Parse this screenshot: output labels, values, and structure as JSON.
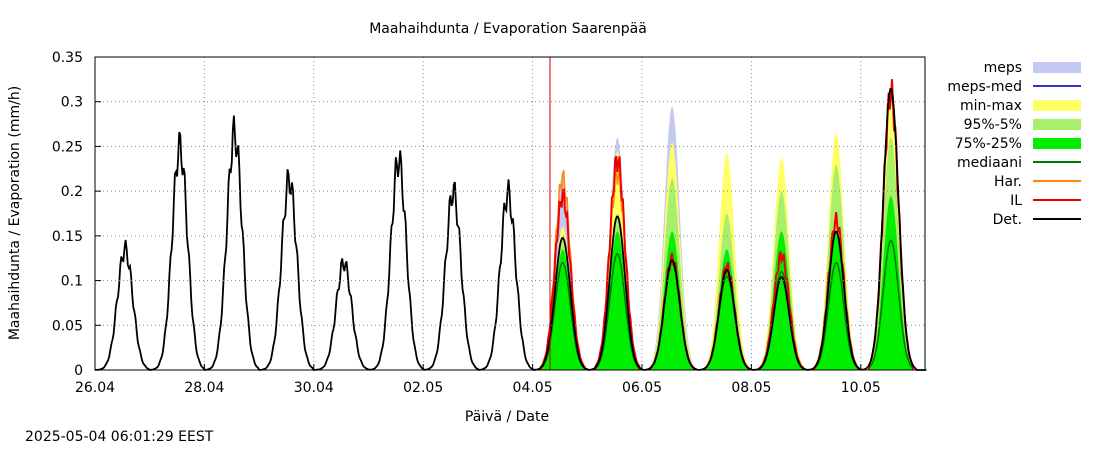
{
  "chart_data": {
    "type": "area",
    "title": "Maahaihdunta / Evaporation  Saarenpää",
    "xlabel": "Päivä / Date",
    "ylabel": "Maahaihdunta / Evaporation (mm/h)",
    "x_range_days": [
      "26.04",
      "11.05"
    ],
    "ylim": [
      0,
      0.35
    ],
    "x_ticks": [
      "26.04",
      "28.04",
      "30.04",
      "02.05",
      "04.05",
      "06.05",
      "08.05",
      "10.05"
    ],
    "y_ticks": [
      "0",
      "0.05",
      "0.1",
      "0.15",
      "0.2",
      "0.25",
      "0.3",
      "0.35"
    ],
    "grid": true,
    "legend_position": "right",
    "forecast_start": "04.05 06:00",
    "colors": {
      "meps": "#c4c8f4",
      "meps-med": "#3333cc",
      "min-max": "#ffff66",
      "95%-5%": "#a8ef6c",
      "75%-25%": "#00ee00",
      "mediaani": "#007700",
      "Har.": "#ff8800",
      "IL": "#ee0000",
      "Det.": "#000000",
      "forecast_line": "#cc0000"
    },
    "legend": [
      "meps",
      "meps-med",
      "min-max",
      "95%-5%",
      "75%-25%",
      "mediaani",
      "Har.",
      "IL",
      "Det."
    ],
    "series": [
      {
        "name": "Det.",
        "kind": "line",
        "daily_peaks": [
          {
            "date": "26.04",
            "peak": 0.135
          },
          {
            "date": "27.04",
            "peak": 0.25
          },
          {
            "date": "28.04",
            "peak": 0.265
          },
          {
            "date": "29.04",
            "peak": 0.213
          },
          {
            "date": "30.04",
            "peak": 0.12
          },
          {
            "date": "01.05",
            "peak": 0.235
          },
          {
            "date": "02.05",
            "peak": 0.2
          },
          {
            "date": "03.05",
            "peak": 0.198
          },
          {
            "date": "04.05",
            "peak": 0.148
          },
          {
            "date": "05.05",
            "peak": 0.172
          },
          {
            "date": "06.05",
            "peak": 0.123
          },
          {
            "date": "07.05",
            "peak": 0.112
          },
          {
            "date": "08.05",
            "peak": 0.104
          },
          {
            "date": "09.05",
            "peak": 0.155
          },
          {
            "date": "10.05",
            "peak": 0.315
          }
        ]
      },
      {
        "name": "IL",
        "kind": "line",
        "daily_peaks": [
          {
            "date": "04.05",
            "peak": 0.195
          },
          {
            "date": "05.05",
            "peak": 0.235
          },
          {
            "date": "06.05",
            "peak": 0.125
          },
          {
            "date": "07.05",
            "peak": 0.115
          },
          {
            "date": "08.05",
            "peak": 0.128
          },
          {
            "date": "09.05",
            "peak": 0.167
          },
          {
            "date": "10.05",
            "peak": 0.31
          }
        ]
      },
      {
        "name": "Har.",
        "kind": "line",
        "daily_peaks": [
          {
            "date": "04.05",
            "peak": 0.215
          },
          {
            "date": "05.05",
            "peak": 0.22
          }
        ]
      },
      {
        "name": "mediaani",
        "kind": "line",
        "daily_peaks": [
          {
            "date": "04.05",
            "peak": 0.12
          },
          {
            "date": "05.05",
            "peak": 0.13
          },
          {
            "date": "06.05",
            "peak": 0.12
          },
          {
            "date": "07.05",
            "peak": 0.105
          },
          {
            "date": "08.05",
            "peak": 0.11
          },
          {
            "date": "09.05",
            "peak": 0.12
          },
          {
            "date": "10.05",
            "peak": 0.145
          }
        ]
      },
      {
        "name": "75%-25%",
        "kind": "band",
        "daily_peaks": [
          {
            "date": "04.05",
            "low": 0.1,
            "high": 0.135
          },
          {
            "date": "05.05",
            "low": 0.11,
            "high": 0.155
          },
          {
            "date": "06.05",
            "low": 0.105,
            "high": 0.155
          },
          {
            "date": "07.05",
            "low": 0.095,
            "high": 0.135
          },
          {
            "date": "08.05",
            "low": 0.095,
            "high": 0.155
          },
          {
            "date": "09.05",
            "low": 0.1,
            "high": 0.155
          },
          {
            "date": "10.05",
            "low": 0.125,
            "high": 0.195
          }
        ]
      },
      {
        "name": "95%-5%",
        "kind": "band",
        "daily_peaks": [
          {
            "date": "04.05",
            "low": 0.085,
            "high": 0.145
          },
          {
            "date": "05.05",
            "low": 0.09,
            "high": 0.175
          },
          {
            "date": "06.05",
            "low": 0.085,
            "high": 0.215
          },
          {
            "date": "07.05",
            "low": 0.08,
            "high": 0.175
          },
          {
            "date": "08.05",
            "low": 0.08,
            "high": 0.2
          },
          {
            "date": "09.05",
            "low": 0.085,
            "high": 0.23
          },
          {
            "date": "10.05",
            "low": 0.1,
            "high": 0.26
          }
        ]
      },
      {
        "name": "min-max",
        "kind": "band",
        "daily_peaks": [
          {
            "date": "04.05",
            "low": 0.065,
            "high": 0.16
          },
          {
            "date": "05.05",
            "low": 0.075,
            "high": 0.245
          },
          {
            "date": "06.05",
            "low": 0.07,
            "high": 0.255
          },
          {
            "date": "07.05",
            "low": 0.07,
            "high": 0.243
          },
          {
            "date": "08.05",
            "low": 0.07,
            "high": 0.238
          },
          {
            "date": "09.05",
            "low": 0.075,
            "high": 0.265
          },
          {
            "date": "10.05",
            "low": 0.09,
            "high": 0.31
          }
        ]
      },
      {
        "name": "meps",
        "kind": "band",
        "daily_peaks": [
          {
            "date": "04.05",
            "high": 0.22
          },
          {
            "date": "05.05",
            "high": 0.26
          },
          {
            "date": "06.05",
            "high": 0.295
          },
          {
            "date": "07.05",
            "high": 0.24
          },
          {
            "date": "08.05",
            "high": 0.23
          },
          {
            "date": "09.05",
            "high": 0.26
          },
          {
            "date": "10.05",
            "high": 0.31
          }
        ]
      }
    ]
  },
  "footer": {
    "timestamp": "2025-05-04 06:01:29 EEST"
  }
}
